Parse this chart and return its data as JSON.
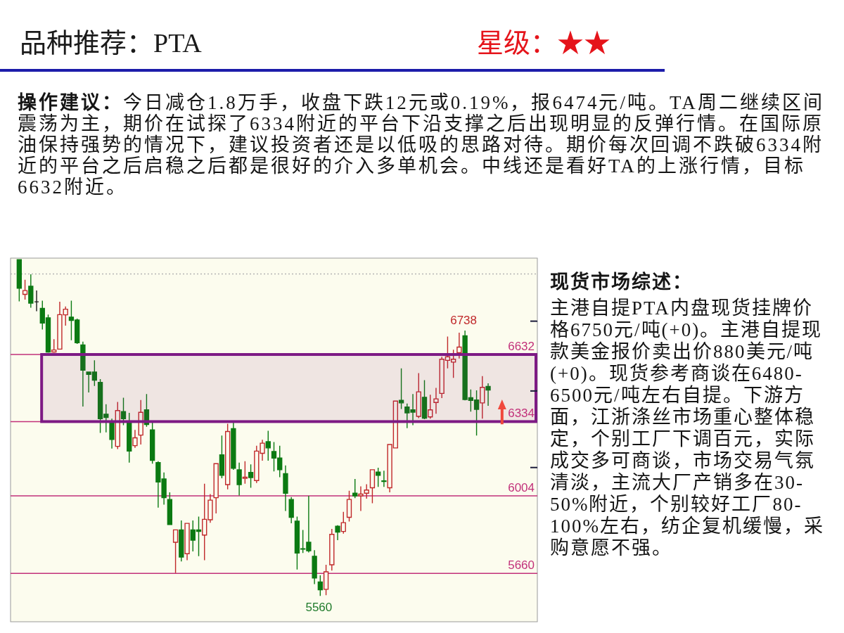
{
  "chart_data": {
    "type": "candlestick",
    "title": "品种推荐：PTA",
    "subtitle": "星级：★★",
    "categories": [
      null,
      null,
      null,
      null,
      null,
      null,
      null,
      null,
      null,
      null,
      null,
      null,
      null,
      null,
      null,
      null,
      null,
      null,
      null,
      null,
      null,
      null,
      null,
      null,
      null,
      null,
      null,
      null,
      null,
      null,
      null,
      null,
      null,
      null,
      null,
      null,
      null,
      null,
      null,
      null,
      null,
      null,
      null,
      null,
      null,
      null,
      null,
      null,
      null,
      null,
      null,
      null,
      null,
      null,
      null,
      null,
      null,
      null,
      null,
      null,
      null,
      null,
      null,
      null,
      null,
      null,
      null,
      null,
      null,
      null,
      null,
      null,
      null,
      null,
      null,
      null,
      null,
      null,
      null,
      null,
      null,
      null,
      null,
      null,
      null,
      null,
      null,
      null,
      null,
      null,
      null
    ],
    "ohlc": [
      null,
      [
        7053,
        7055,
        6868,
        6926
      ],
      [
        6899,
        6964,
        6876,
        6916
      ],
      [
        6935,
        6988,
        6840,
        6860
      ],
      [
        6866,
        6916,
        6824,
        6866
      ],
      [
        6837,
        6871,
        6743,
        6772
      ],
      [
        6795,
        6809,
        6640,
        6643
      ],
      [
        6643,
        6700,
        6640,
        6652
      ],
      [
        6656,
        6866,
        6654,
        6809
      ],
      [
        6808,
        6845,
        6760,
        6833
      ],
      [
        6798,
        6871,
        6695,
        6783
      ],
      [
        6785,
        6791,
        6679,
        6684
      ],
      [
        6674,
        6689,
        6401,
        6562
      ],
      [
        6554,
        6556,
        6463,
        6544
      ],
      [
        6554,
        6606,
        6492,
        6518
      ],
      [
        6508,
        6523,
        6284,
        6347
      ],
      [
        6367,
        6411,
        6286,
        6352
      ],
      [
        6331,
        6347,
        6214,
        6255
      ],
      [
        6224,
        6421,
        6212,
        6383
      ],
      [
        6378,
        6440,
        6318,
        6347
      ],
      [
        6331,
        6373,
        6152,
        6203
      ],
      [
        6227,
        6297,
        6217,
        6262
      ],
      [
        6274,
        6430,
        6232,
        6375
      ],
      [
        6386,
        6456,
        6311,
        6321
      ],
      [
        6297,
        6331,
        6147,
        6162
      ],
      [
        6152,
        6158,
        5952,
        6066
      ],
      [
        6079,
        6108,
        5965,
        5996
      ],
      [
        5988,
        6020,
        5875,
        5877
      ],
      [
        5798,
        5853,
        5661,
        5853
      ],
      [
        5853,
        5895,
        5713,
        5732
      ],
      [
        5747,
        5882,
        5718,
        5882
      ],
      [
        5853,
        5895,
        5757,
        5807
      ],
      [
        5853,
        5912,
        5736,
        5846
      ],
      [
        5830,
        6058,
        5718,
        5900
      ],
      [
        5898,
        6012,
        5885,
        5985
      ],
      [
        5996,
        6147,
        5926,
        6147
      ],
      [
        6186,
        6272,
        6082,
        6095
      ],
      [
        6054,
        6324,
        6033,
        6290
      ],
      [
        6303,
        6331,
        6120,
        6127
      ],
      [
        6120,
        6152,
        6006,
        6054
      ],
      [
        6082,
        6158,
        6058,
        6087
      ],
      [
        6108,
        6144,
        6040,
        6085
      ],
      [
        6072,
        6227,
        6061,
        6203
      ],
      [
        6193,
        6253,
        6160,
        6238
      ],
      [
        6245,
        6293,
        6160,
        6217
      ],
      [
        6201,
        6243,
        6113,
        6172
      ],
      [
        6172,
        6227,
        6087,
        6120
      ],
      [
        6103,
        6139,
        5937,
        6016
      ],
      [
        5988,
        5999,
        5882,
        5909
      ],
      [
        5892,
        5912,
        5677,
        5750
      ],
      [
        5769,
        5853,
        5750,
        5767
      ],
      [
        5798,
        6004,
        5753,
        5760
      ],
      [
        5736,
        5763,
        5612,
        5639
      ],
      [
        5622,
        5651,
        5560,
        5587
      ],
      [
        5589,
        5698,
        5563,
        5667
      ],
      [
        5698,
        5857,
        5672,
        5833
      ],
      [
        5869,
        5874,
        5807,
        5843
      ],
      [
        5846,
        5933,
        5836,
        5885
      ],
      [
        5909,
        6027,
        5890,
        5988
      ],
      [
        6016,
        6079,
        5994,
        6004
      ],
      [
        6004,
        6046,
        5937,
        6012
      ],
      [
        6016,
        6056,
        5992,
        6030
      ],
      [
        6040,
        6120,
        5971,
        6120
      ],
      [
        6110,
        6129,
        6044,
        6095
      ],
      [
        6071,
        6116,
        6044,
        6068
      ],
      [
        6040,
        6232,
        6020,
        6232
      ],
      [
        6217,
        6425,
        6217,
        6425
      ],
      [
        6428,
        6570,
        6390,
        6417
      ],
      [
        6399,
        6414,
        6305,
        6373
      ],
      [
        6386,
        6456,
        6318,
        6376
      ],
      [
        6357,
        6549,
        6349,
        6466
      ],
      [
        6442,
        6518,
        6345,
        6349
      ],
      [
        6355,
        6453,
        6347,
        6386
      ],
      [
        6419,
        6484,
        6369,
        6435
      ],
      [
        6459,
        6622,
        6438,
        6611
      ],
      [
        6606,
        6712,
        6570,
        6622
      ],
      [
        6598,
        6653,
        6528,
        6611
      ],
      [
        6640,
        6729,
        6614,
        6665
      ],
      [
        6715,
        6738,
        6428,
        6432
      ],
      [
        6440,
        6477,
        6378,
        6428
      ],
      [
        6430,
        6473,
        6272,
        6388
      ],
      [
        6417,
        6536,
        6347,
        6486
      ],
      [
        6490,
        6504,
        6404,
        6474
      ],
      null,
      null,
      null,
      null,
      null,
      null,
      null,
      null
    ],
    "ylim": [
      5445,
      7060
    ],
    "yticks": [
      {
        "value": 6780,
        "label": null
      },
      {
        "value": 6470,
        "label": null
      },
      {
        "value": 6130,
        "label": null
      }
    ],
    "ref_lines": [
      {
        "axis": "y",
        "value": 6990,
        "color": "#b4b4b4",
        "line_style": "dotted"
      },
      {
        "axis": "y",
        "value": 6632,
        "label": "6632",
        "color": "#c2307a"
      },
      {
        "axis": "y",
        "value": 6334,
        "label": "6334",
        "color": "#c2307a"
      },
      {
        "axis": "y",
        "value": 6004,
        "label": "6004",
        "color": "#c2307a"
      },
      {
        "axis": "y",
        "value": 5660,
        "label": "5660",
        "color": "#c2307a"
      }
    ],
    "bands": [
      {
        "axis": "y",
        "from": 6334,
        "to": 6632,
        "color": "#7d1a84"
      }
    ],
    "annotations": [
      "操作建议：",
      "今日减仓1.8万手，收盘下跌12元或0.19%，报6474元/吨。TA周二继续区间震荡为主，期价在试探了6334附近的平台下沿支撑之后出现明显的反弹行情。在国际原油保持强势的情况下，建议投资者还是以低吸的思路对待。期价每次回调不跌破6334附近的平台之后启稳之后都是很好的介入多单机会。中线还是看好TA的上涨行情，目标6632附近。",
      "现货市场综述：",
      "主港自提PTA内盘现货挂牌价格6750元/吨(+0)。主港自提现款美金报价卖出价880美元/吨(+0)。现货参考商谈在6480-6500元/吨左右自提。下游方面，江浙涤丝市场重心整体稳定，个别工厂下调百元，实际成交多可商谈，市场交易气氛清淡，主流大厂产销多在30-50%附近，个别较好工厂80-100%左右，纺企复机缓慢，采购意愿不强。",
      {
        "text": "6738",
        "y": 6738
      },
      {
        "text": "5560",
        "y": 5560
      }
    ]
  }
}
